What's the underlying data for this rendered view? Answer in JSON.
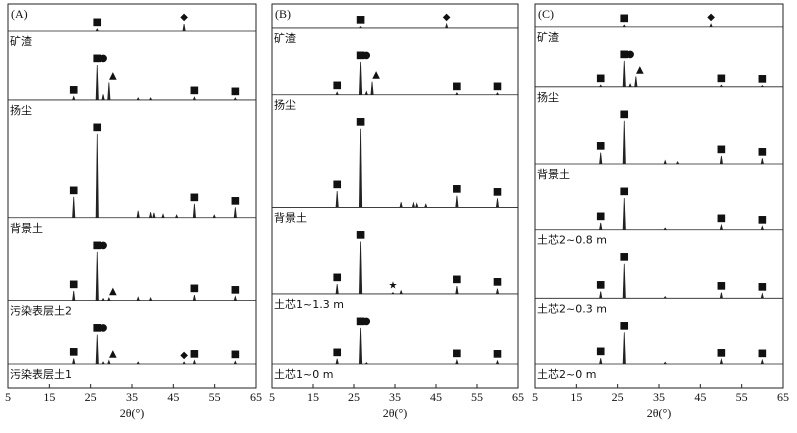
{
  "chart_data": [
    {
      "type": "xrd",
      "panel_label": "(A)",
      "x_label": "2θ(°)",
      "xlim": [
        5,
        65
      ],
      "xticks": [
        5,
        15,
        25,
        35,
        45,
        55,
        65
      ],
      "traces": [
        {
          "name": "矿渣",
          "x": [
            26.6,
            47.6
          ],
          "values": [
            3,
            10
          ],
          "markers": [
            {
              "x": 26.6,
              "symbol": "■"
            },
            {
              "x": 47.6,
              "symbol": "◆"
            }
          ]
        },
        {
          "name": "扬尘",
          "x": [
            20.9,
            26.6,
            28,
            29.4,
            36.5,
            39.5,
            50.1,
            60
          ],
          "values": [
            5,
            50,
            8,
            25,
            3,
            3,
            4,
            3
          ],
          "markers": [
            {
              "x": 20.9,
              "symbol": "■"
            },
            {
              "x": 26.6,
              "symbol": "■"
            },
            {
              "x": 28,
              "symbol": "●"
            },
            {
              "x": 29.4,
              "symbol": "▲"
            },
            {
              "x": 50.1,
              "symbol": "■"
            },
            {
              "x": 60,
              "symbol": "■"
            }
          ]
        },
        {
          "name": "背景土",
          "x": [
            20.9,
            26.6,
            36.5,
            39.5,
            40.3,
            42.5,
            45.8,
            50.1,
            54.9,
            60
          ],
          "values": [
            30,
            120,
            10,
            8,
            7,
            5,
            4,
            20,
            4,
            15
          ],
          "markers": [
            {
              "x": 20.9,
              "symbol": "■"
            },
            {
              "x": 26.6,
              "symbol": "■"
            },
            {
              "x": 50.1,
              "symbol": "■"
            },
            {
              "x": 60,
              "symbol": "■"
            }
          ]
        },
        {
          "name": "污染表层土2",
          "x": [
            20.9,
            26.6,
            28,
            29.4,
            36.5,
            39.5,
            50.1,
            60
          ],
          "values": [
            14,
            70,
            3,
            4,
            5,
            4,
            8,
            6
          ],
          "markers": [
            {
              "x": 20.9,
              "symbol": "■"
            },
            {
              "x": 26.6,
              "symbol": "■"
            },
            {
              "x": 28,
              "symbol": "●"
            },
            {
              "x": 29.4,
              "symbol": "▲"
            },
            {
              "x": 50.1,
              "symbol": "■"
            },
            {
              "x": 60,
              "symbol": "■"
            }
          ]
        },
        {
          "name": "污染表层土1",
          "x": [
            20.9,
            26.6,
            28,
            29.4,
            36.5,
            47.6,
            50.1,
            60
          ],
          "values": [
            8,
            42,
            3,
            5,
            3,
            3,
            5,
            4
          ],
          "markers": [
            {
              "x": 20.9,
              "symbol": "■"
            },
            {
              "x": 26.6,
              "symbol": "■"
            },
            {
              "x": 28,
              "symbol": "●"
            },
            {
              "x": 29.4,
              "symbol": "▲"
            },
            {
              "x": 47.6,
              "symbol": "◆"
            },
            {
              "x": 50.1,
              "symbol": "■"
            },
            {
              "x": 60,
              "symbol": "■"
            }
          ]
        }
      ]
    },
    {
      "type": "xrd",
      "panel_label": "(B)",
      "x_label": "2θ(°)",
      "xlim": [
        5,
        65
      ],
      "xticks": [
        5,
        15,
        25,
        35,
        45,
        55,
        65
      ],
      "traces": [
        {
          "name": "矿渣",
          "x": [
            26.6,
            47.6
          ],
          "values": [
            2,
            6
          ],
          "markers": [
            {
              "x": 26.6,
              "symbol": "■"
            },
            {
              "x": 47.6,
              "symbol": "◆"
            }
          ]
        },
        {
          "name": "扬尘",
          "x": [
            20.9,
            26.6,
            28,
            29.4,
            50.1,
            60
          ],
          "values": [
            4,
            50,
            5,
            20,
            3,
            3
          ],
          "markers": [
            {
              "x": 20.9,
              "symbol": "■"
            },
            {
              "x": 26.6,
              "symbol": "■"
            },
            {
              "x": 28,
              "symbol": "●"
            },
            {
              "x": 29.4,
              "symbol": "▲"
            },
            {
              "x": 50.1,
              "symbol": "■"
            },
            {
              "x": 60,
              "symbol": "■"
            }
          ]
        },
        {
          "name": "背景土",
          "x": [
            20.9,
            26.6,
            36.5,
            39.5,
            40.3,
            42.5,
            50.1,
            60
          ],
          "values": [
            25,
            120,
            8,
            7,
            6,
            5,
            18,
            14
          ],
          "markers": [
            {
              "x": 20.9,
              "symbol": "■"
            },
            {
              "x": 26.6,
              "symbol": "■"
            },
            {
              "x": 50.1,
              "symbol": "■"
            },
            {
              "x": 60,
              "symbol": "■"
            }
          ]
        },
        {
          "name": "土芯1~1.3 m",
          "x": [
            20.9,
            26.6,
            34.5,
            36.5,
            50.1,
            60
          ],
          "values": [
            15,
            80,
            2,
            5,
            12,
            8
          ],
          "markers": [
            {
              "x": 20.9,
              "symbol": "■"
            },
            {
              "x": 26.6,
              "symbol": "■"
            },
            {
              "x": 34.5,
              "symbol": "★"
            },
            {
              "x": 50.1,
              "symbol": "■"
            },
            {
              "x": 60,
              "symbol": "■"
            }
          ]
        },
        {
          "name": "土芯1~0 m",
          "x": [
            20.9,
            26.6,
            28,
            50.1,
            60
          ],
          "values": [
            8,
            55,
            2,
            6,
            5
          ],
          "markers": [
            {
              "x": 20.9,
              "symbol": "■"
            },
            {
              "x": 26.6,
              "symbol": "■"
            },
            {
              "x": 28,
              "symbol": "●"
            },
            {
              "x": 50.1,
              "symbol": "■"
            },
            {
              "x": 60,
              "symbol": "■"
            }
          ]
        }
      ]
    },
    {
      "type": "xrd",
      "panel_label": "(C)",
      "x_label": "2θ(°)",
      "xlim": [
        5,
        65
      ],
      "xticks": [
        5,
        15,
        25,
        35,
        45,
        55,
        65
      ],
      "traces": [
        {
          "name": "矿渣",
          "x": [
            26.6,
            47.6
          ],
          "values": [
            3,
            5
          ],
          "markers": [
            {
              "x": 26.6,
              "symbol": "■"
            },
            {
              "x": 47.6,
              "symbol": "◆"
            }
          ]
        },
        {
          "name": "扬尘",
          "x": [
            20.9,
            26.6,
            28,
            29.4,
            50.1,
            60
          ],
          "values": [
            3,
            45,
            5,
            18,
            3,
            2
          ],
          "markers": [
            {
              "x": 20.9,
              "symbol": "■"
            },
            {
              "x": 26.6,
              "symbol": "■"
            },
            {
              "x": 28,
              "symbol": "●"
            },
            {
              "x": 29.4,
              "symbol": "▲"
            },
            {
              "x": 50.1,
              "symbol": "■"
            },
            {
              "x": 60,
              "symbol": "■"
            }
          ]
        },
        {
          "name": "背景土",
          "x": [
            20.9,
            26.6,
            36.5,
            39.5,
            50.1,
            60
          ],
          "values": [
            20,
            75,
            6,
            4,
            14,
            10
          ],
          "markers": [
            {
              "x": 20.9,
              "symbol": "■"
            },
            {
              "x": 26.6,
              "symbol": "■"
            },
            {
              "x": 50.1,
              "symbol": "■"
            },
            {
              "x": 60,
              "symbol": "■"
            }
          ]
        },
        {
          "name": "土芯2~0.8 m",
          "x": [
            20.9,
            26.6,
            36.5,
            50.1,
            60
          ],
          "values": [
            12,
            55,
            3,
            8,
            6
          ],
          "markers": [
            {
              "x": 20.9,
              "symbol": "■"
            },
            {
              "x": 26.6,
              "symbol": "■"
            },
            {
              "x": 50.1,
              "symbol": "■"
            },
            {
              "x": 60,
              "symbol": "■"
            }
          ]
        },
        {
          "name": "土芯2~0.3 m",
          "x": [
            20.9,
            26.6,
            36.5,
            50.1,
            60
          ],
          "values": [
            12,
            60,
            3,
            10,
            8
          ],
          "markers": [
            {
              "x": 20.9,
              "symbol": "■"
            },
            {
              "x": 26.6,
              "symbol": "■"
            },
            {
              "x": 50.1,
              "symbol": "■"
            },
            {
              "x": 60,
              "symbol": "■"
            }
          ]
        },
        {
          "name": "土芯2~0 m",
          "x": [
            20.9,
            26.6,
            36.5,
            50.1,
            60
          ],
          "values": [
            10,
            55,
            3,
            8,
            7
          ],
          "markers": [
            {
              "x": 20.9,
              "symbol": "■"
            },
            {
              "x": 26.6,
              "symbol": "■"
            },
            {
              "x": 50.1,
              "symbol": "■"
            },
            {
              "x": 60,
              "symbol": "■"
            }
          ]
        }
      ]
    }
  ]
}
